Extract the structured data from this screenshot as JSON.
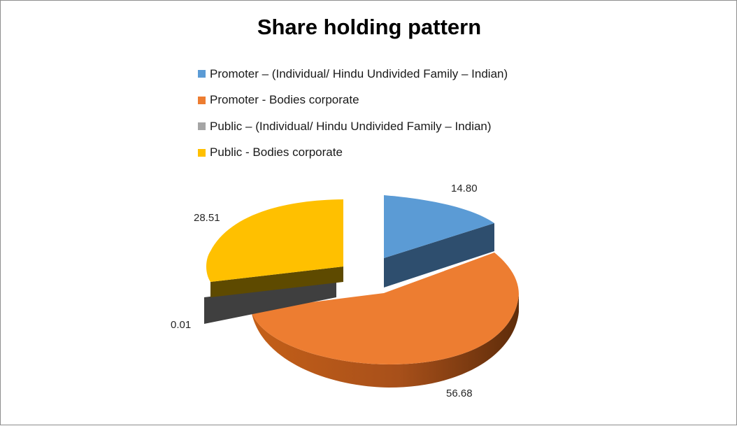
{
  "chart_data": {
    "type": "pie",
    "title": "Share holding pattern",
    "legend_position": "top",
    "categories": [
      "Promoter – (Individual/ Hindu Undivided Family – Indian)",
      "Promoter - Bodies corporate",
      "Public  – (Individual/ Hindu Undivided Family – Indian)",
      "Public - Bodies corporate"
    ],
    "values": [
      14.8,
      56.68,
      0.01,
      28.51
    ],
    "value_labels": [
      "14.80",
      "56.68",
      "0.01",
      "28.51"
    ],
    "colors": [
      "#5B9BD5",
      "#ED7D31",
      "#A5A5A5",
      "#FFC000"
    ],
    "exploded": true,
    "three_d": true
  }
}
